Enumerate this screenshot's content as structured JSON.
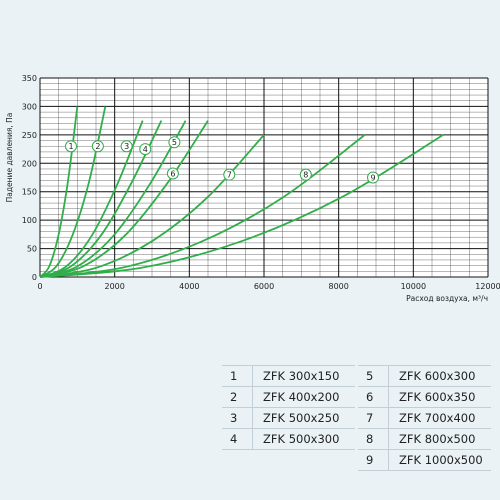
{
  "chart_data": {
    "type": "line",
    "ylabel": "Падение давления, Па",
    "xlabel": "Расход воздуха, м³/ч",
    "xlim": [
      0,
      12000
    ],
    "ylim": [
      0,
      350
    ],
    "xticks": [
      0,
      2000,
      4000,
      6000,
      8000,
      10000,
      12000
    ],
    "yticks": [
      0,
      50,
      100,
      150,
      200,
      250,
      300,
      350
    ],
    "grid": true,
    "series": [
      {
        "name": "ZFK 300x150",
        "label": "1",
        "x": [
          0,
          250,
          500,
          750,
          1000
        ],
        "y": [
          0,
          19,
          75,
          169,
          300
        ],
        "label_at": [
          830,
          230
        ]
      },
      {
        "name": "ZFK 400x200",
        "label": "2",
        "x": [
          0,
          440,
          880,
          1320,
          1750
        ],
        "y": [
          0,
          19,
          75,
          169,
          300
        ],
        "label_at": [
          1550,
          230
        ]
      },
      {
        "name": "ZFK 500x250",
        "label": "3",
        "x": [
          0,
          690,
          1380,
          2070,
          2750
        ],
        "y": [
          0,
          18,
          72,
          163,
          275
        ],
        "label_at": [
          2320,
          230
        ]
      },
      {
        "name": "ZFK 500x300",
        "label": "4",
        "x": [
          0,
          810,
          1620,
          2430,
          3250
        ],
        "y": [
          0,
          18,
          72,
          163,
          275
        ],
        "label_at": [
          2820,
          225
        ]
      },
      {
        "name": "ZFK 600x300",
        "label": "5",
        "x": [
          0,
          980,
          1960,
          2940,
          3900
        ],
        "y": [
          0,
          18,
          72,
          163,
          275
        ],
        "label_at": [
          3600,
          237
        ]
      },
      {
        "name": "ZFK 600x350",
        "label": "6",
        "x": [
          0,
          1130,
          2260,
          3390,
          4500
        ],
        "y": [
          0,
          18,
          72,
          163,
          275
        ],
        "label_at": [
          3560,
          182
        ]
      },
      {
        "name": "ZFK 700x400",
        "label": "7",
        "x": [
          0,
          1500,
          3000,
          4500,
          6000
        ],
        "y": [
          0,
          16,
          63,
          141,
          250
        ],
        "label_at": [
          5070,
          180
        ]
      },
      {
        "name": "ZFK 800x500",
        "label": "8",
        "x": [
          0,
          2180,
          4350,
          6530,
          8700
        ],
        "y": [
          0,
          16,
          63,
          141,
          250
        ],
        "label_at": [
          7120,
          180
        ]
      },
      {
        "name": "ZFK 1000x500",
        "label": "9",
        "x": [
          0,
          2700,
          5400,
          8100,
          10800
        ],
        "y": [
          0,
          16,
          63,
          141,
          250
        ],
        "label_at": [
          8920,
          175
        ]
      }
    ]
  },
  "legend": {
    "left": [
      {
        "num": "1",
        "name": "ZFK 300x150"
      },
      {
        "num": "2",
        "name": "ZFK 400x200"
      },
      {
        "num": "3",
        "name": "ZFK 500x250"
      },
      {
        "num": "4",
        "name": "ZFK 500x300"
      }
    ],
    "right": [
      {
        "num": "5",
        "name": "ZFK 600x300"
      },
      {
        "num": "6",
        "name": "ZFK 600x350"
      },
      {
        "num": "7",
        "name": "ZFK 700x400"
      },
      {
        "num": "8",
        "name": "ZFK 800x500"
      },
      {
        "num": "9",
        "name": "ZFK 1000x500"
      }
    ]
  },
  "colors": {
    "curve": "#2fae4a",
    "grid": "#111111",
    "background": "#eaf2f6",
    "plot_background": "#ffffff"
  }
}
